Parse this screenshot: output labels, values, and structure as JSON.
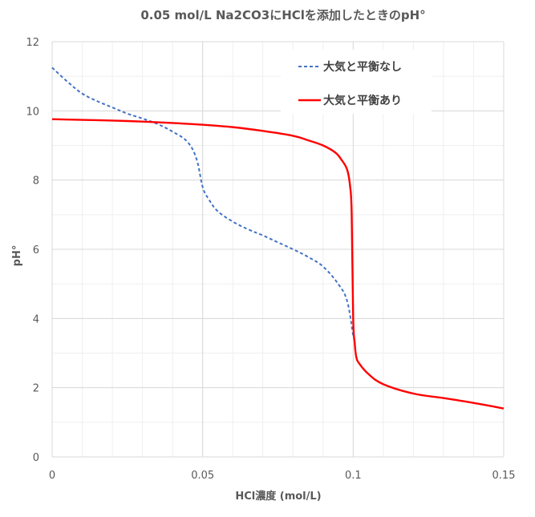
{
  "chart_data": {
    "type": "line",
    "title": "0.05 mol/L Na2CO3にHClを添加したときのpH°",
    "xlabel": "HCl濃度 (mol/L)",
    "ylabel": "pH°",
    "xlim": [
      0,
      0.15
    ],
    "ylim": [
      0,
      12
    ],
    "x_ticks": [
      "0",
      "0.05",
      "0.1",
      "0.15"
    ],
    "y_ticks": [
      "0",
      "2",
      "4",
      "6",
      "8",
      "10",
      "12"
    ],
    "grid": true,
    "legend_position": "top-right",
    "series": [
      {
        "name": "大気と平衡なし",
        "color": "#4472c4",
        "style": "dashed",
        "x": [
          0,
          0.005,
          0.01,
          0.015,
          0.02,
          0.025,
          0.03,
          0.035,
          0.04,
          0.045,
          0.048,
          0.05,
          0.052,
          0.055,
          0.06,
          0.065,
          0.07,
          0.075,
          0.08,
          0.085,
          0.09,
          0.095,
          0.098,
          0.1
        ],
        "y": [
          11.25,
          10.85,
          10.5,
          10.28,
          10.1,
          9.92,
          9.78,
          9.62,
          9.4,
          9.1,
          8.6,
          7.8,
          7.45,
          7.1,
          6.8,
          6.58,
          6.4,
          6.2,
          6.0,
          5.78,
          5.5,
          5.0,
          4.5,
          3.5
        ]
      },
      {
        "name": "大気と平衡あり",
        "color": "#ff0000",
        "style": "solid",
        "x": [
          0,
          0.01,
          0.02,
          0.03,
          0.04,
          0.05,
          0.06,
          0.07,
          0.08,
          0.085,
          0.09,
          0.094,
          0.096,
          0.098,
          0.099,
          0.0995,
          0.1,
          0.1005,
          0.101,
          0.102,
          0.105,
          0.11,
          0.12,
          0.13,
          0.14,
          0.15
        ],
        "y": [
          9.76,
          9.74,
          9.72,
          9.69,
          9.65,
          9.6,
          9.53,
          9.42,
          9.28,
          9.15,
          9.0,
          8.8,
          8.6,
          8.3,
          7.8,
          7.0,
          4.0,
          3.3,
          2.9,
          2.7,
          2.4,
          2.1,
          1.83,
          1.7,
          1.56,
          1.4
        ]
      }
    ]
  }
}
